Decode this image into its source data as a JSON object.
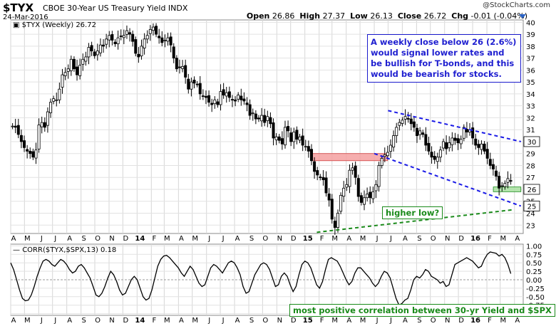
{
  "header": {
    "symbol": "$TYX",
    "description": "CBOE 30-Year US Treasury Yield INDX",
    "date": "24-Mar-2016",
    "quote": {
      "open": "26.86",
      "high": "27.37",
      "low": "26.13",
      "close": "26.72",
      "chg": "-0.01 (-0.04%)"
    },
    "copyright": "@StockCharts.com"
  },
  "price_panel_label": "$TYX (Weekly) 26.72",
  "corr_panel_label": "CORR($TYX,$SPX,13) 0.18",
  "annotations": {
    "note": "A weekly close below 26 (2.6%) would signal lower rates and be bullish for T-bonds, and this would be bearish for stocks.",
    "higher_low": "higher low?",
    "most_positive": "most positive correlation between 30-yr Yield and $SPX"
  },
  "colors": {
    "up": "#000000",
    "down": "#000000",
    "trendline": "#1a1ae6",
    "support": "#1a8a1a",
    "resistance_zone": "#f5a0a0",
    "support_zone": "#a8e0a0",
    "note_text": "#1f1fd0"
  },
  "chart_data": [
    {
      "type": "candlestick",
      "title": "$TYX (Weekly) 26.72",
      "y_ticks": [
        23,
        24,
        25,
        26,
        27,
        28,
        29,
        30,
        31,
        32,
        33,
        34,
        35,
        36,
        37,
        38,
        39,
        40
      ],
      "ylim": [
        22.3,
        40.2
      ],
      "x_ticks": [
        "A",
        "M",
        "J",
        "J",
        "A",
        "S",
        "O",
        "N",
        "D",
        "14",
        "F",
        "M",
        "A",
        "M",
        "J",
        "J",
        "A",
        "S",
        "O",
        "N",
        "D",
        "15",
        "F",
        "M",
        "A",
        "M",
        "J",
        "J",
        "A",
        "S",
        "O",
        "N",
        "D",
        "16",
        "F",
        "M",
        "A"
      ],
      "x_range": [
        "2013-04",
        "2016-04"
      ],
      "weekly_close": [
        31.3,
        31.2,
        30.6,
        30.0,
        29.5,
        29.2,
        29.0,
        28.7,
        29.3,
        31.4,
        31.6,
        31.2,
        32.5,
        33.3,
        33.6,
        33.5,
        34.4,
        35.6,
        35.8,
        36.1,
        36.9,
        36.1,
        35.6,
        36.4,
        36.9,
        37.1,
        37.9,
        37.6,
        37.2,
        37.6,
        38.1,
        38.0,
        38.6,
        38.9,
        38.5,
        38.2,
        38.7,
        38.8,
        38.9,
        39.3,
        39.0,
        38.4,
        37.4,
        37.1,
        38.0,
        38.6,
        38.9,
        39.4,
        39.6,
        39.0,
        38.7,
        38.3,
        38.5,
        38.7,
        38.1,
        37.0,
        36.1,
        36.2,
        36.3,
        35.4,
        34.4,
        35.0,
        34.9,
        34.8,
        34.0,
        33.8,
        33.7,
        33.3,
        33.1,
        33.5,
        33.1,
        34.2,
        33.9,
        34.1,
        33.7,
        33.5,
        33.4,
        33.9,
        33.5,
        33.4,
        33.1,
        32.2,
        32.4,
        31.9,
        31.9,
        32.2,
        31.6,
        32.1,
        31.5,
        30.3,
        30.4,
        30.1,
        29.8,
        31.2,
        30.9,
        30.0,
        30.8,
        30.2,
        30.4,
        29.7,
        29.6,
        29.2,
        28.4,
        27.5,
        27.2,
        27.0,
        26.8,
        25.7,
        25.1,
        23.5,
        22.8,
        24.0,
        25.5,
        26.1,
        26.4,
        27.6,
        27.8,
        27.0,
        25.4,
        24.9,
        25.3,
        25.6,
        25.3,
        25.8,
        26.4,
        28.0,
        28.6,
        28.9,
        29.1,
        29.7,
        30.5,
        31.2,
        31.6,
        31.8,
        32.1,
        31.9,
        31.5,
        31.2,
        30.5,
        30.9,
        30.6,
        29.7,
        29.2,
        28.7,
        28.5,
        28.7,
        29.3,
        30.0,
        29.4,
        29.9,
        30.3,
        30.1,
        29.9,
        30.2,
        31.2,
        30.8,
        31.0,
        30.3,
        29.7,
        29.5,
        29.8,
        29.2,
        28.6,
        28.0,
        27.7,
        27.1,
        26.1,
        26.3,
        26.5,
        26.9,
        26.7
      ],
      "trendlines": [
        {
          "name": "upper channel",
          "style": "dashed",
          "color": "#1a1ae6",
          "points": [
            [
              "2015-07-01",
              32.6
            ],
            [
              "2016-04-15",
              30.0
            ]
          ]
        },
        {
          "name": "lower channel",
          "style": "dashed",
          "color": "#1a1ae6",
          "points": [
            [
              "2015-06-01",
              29.0
            ],
            [
              "2016-04-15",
              24.6
            ]
          ]
        },
        {
          "name": "higher low",
          "style": "dashed",
          "color": "#1a8a1a",
          "points": [
            [
              "2015-01-27",
              22.4
            ],
            [
              "2016-03-31",
              24.3
            ]
          ]
        }
      ],
      "zones": [
        {
          "name": "resistance",
          "color": "#f5a0a0",
          "y": [
            28.4,
            29.0
          ],
          "x": [
            "2015-01-15",
            "2015-06-30"
          ]
        },
        {
          "name": "support",
          "color": "#a8e0a0",
          "y": [
            25.8,
            26.2
          ],
          "x": [
            "2016-02-15",
            "2016-04-15"
          ]
        }
      ],
      "right_axis_labels": [
        {
          "value": 30,
          "text": "30"
        },
        {
          "value": 26,
          "text": "26"
        },
        {
          "value": 24.6,
          "text": "25"
        }
      ]
    },
    {
      "type": "line",
      "title": "CORR($TYX,$SPX,13) 0.18",
      "y_ticks": [
        -1.0,
        -0.75,
        -0.5,
        -0.25,
        0.0,
        0.25,
        0.5,
        0.75,
        1.0
      ],
      "ylim": [
        -1.05,
        1.05
      ],
      "values": [
        0.5,
        0.3,
        0.0,
        -0.3,
        -0.55,
        -0.62,
        -0.6,
        -0.45,
        -0.2,
        0.1,
        0.35,
        0.55,
        0.6,
        0.55,
        0.45,
        0.4,
        0.5,
        0.6,
        0.55,
        0.45,
        0.3,
        0.2,
        0.25,
        0.4,
        0.45,
        0.35,
        0.2,
        0.05,
        -0.2,
        -0.45,
        -0.5,
        -0.4,
        -0.2,
        0.05,
        0.25,
        0.15,
        -0.05,
        -0.3,
        -0.45,
        -0.4,
        -0.2,
        0.0,
        0.1,
        0.0,
        -0.25,
        -0.5,
        -0.6,
        -0.55,
        -0.3,
        0.05,
        0.4,
        0.6,
        0.7,
        0.72,
        0.65,
        0.55,
        0.45,
        0.35,
        0.2,
        0.1,
        0.25,
        0.4,
        0.3,
        0.1,
        -0.1,
        -0.2,
        -0.15,
        0.1,
        0.35,
        0.45,
        0.4,
        0.3,
        0.2,
        0.35,
        0.5,
        0.55,
        0.5,
        0.35,
        0.15,
        -0.2,
        -0.4,
        -0.35,
        -0.1,
        0.15,
        0.3,
        0.45,
        0.5,
        0.45,
        0.3,
        0.05,
        -0.2,
        -0.15,
        0.1,
        0.2,
        0.1,
        -0.15,
        -0.35,
        -0.2,
        0.15,
        0.45,
        0.55,
        0.5,
        0.35,
        0.1,
        -0.15,
        -0.25,
        -0.05,
        0.3,
        0.6,
        0.65,
        0.6,
        0.55,
        0.4,
        0.2,
        0.0,
        -0.15,
        -0.05,
        0.2,
        0.35,
        0.35,
        0.25,
        0.15,
        0.05,
        -0.1,
        -0.2,
        -0.1,
        0.1,
        0.25,
        0.2,
        0.05,
        -0.25,
        -0.55,
        -0.75,
        -0.7,
        -0.6,
        -0.55,
        -0.3,
        0.0,
        0.1,
        0.05,
        0.15,
        0.3,
        0.25,
        0.1,
        0.05,
        0.0,
        -0.1,
        -0.05,
        -0.2,
        -0.15,
        0.15,
        0.45,
        0.5,
        0.55,
        0.6,
        0.65,
        0.6,
        0.55,
        0.45,
        0.35,
        0.4,
        0.6,
        0.75,
        0.82,
        0.8,
        0.78,
        0.7,
        0.75,
        0.65,
        0.45,
        0.18
      ]
    }
  ]
}
